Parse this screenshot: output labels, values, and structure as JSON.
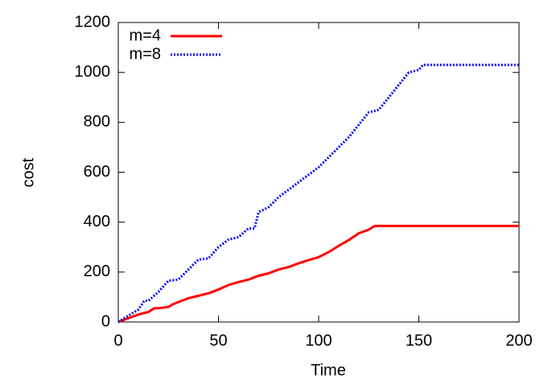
{
  "chart_data": {
    "type": "line",
    "xlabel": "Time",
    "ylabel": "cost",
    "xlim": [
      0,
      200
    ],
    "xticks": [
      0,
      50,
      100,
      150,
      200
    ],
    "ylim": [
      0,
      1200
    ],
    "yticks": [
      0,
      200,
      400,
      600,
      800,
      1000,
      1200
    ],
    "grid": false,
    "legend": "top-left",
    "series": [
      {
        "name": "m=4",
        "color": "#ff0000",
        "dash": "solid",
        "x": [
          0,
          5,
          10,
          15,
          18,
          20,
          25,
          27,
          30,
          35,
          40,
          45,
          50,
          55,
          60,
          65,
          70,
          75,
          80,
          85,
          90,
          95,
          100,
          105,
          110,
          115,
          120,
          125,
          128,
          200
        ],
        "values": [
          0,
          15,
          30,
          40,
          55,
          55,
          60,
          70,
          80,
          95,
          105,
          115,
          130,
          148,
          160,
          170,
          185,
          195,
          210,
          220,
          235,
          248,
          260,
          280,
          305,
          328,
          355,
          370,
          385,
          385
        ]
      },
      {
        "name": "m=8",
        "color": "#0000ff",
        "dash": "dotted",
        "x": [
          0,
          5,
          10,
          13,
          15,
          20,
          25,
          30,
          35,
          40,
          45,
          50,
          55,
          60,
          65,
          68,
          70,
          75,
          80,
          85,
          90,
          95,
          100,
          105,
          110,
          115,
          120,
          125,
          130,
          135,
          140,
          145,
          150,
          152,
          200
        ],
        "values": [
          0,
          25,
          50,
          85,
          85,
          120,
          165,
          170,
          210,
          250,
          255,
          300,
          330,
          340,
          375,
          375,
          440,
          460,
          500,
          530,
          560,
          590,
          620,
          660,
          700,
          740,
          790,
          840,
          850,
          900,
          950,
          1000,
          1010,
          1030,
          1030
        ]
      }
    ]
  }
}
